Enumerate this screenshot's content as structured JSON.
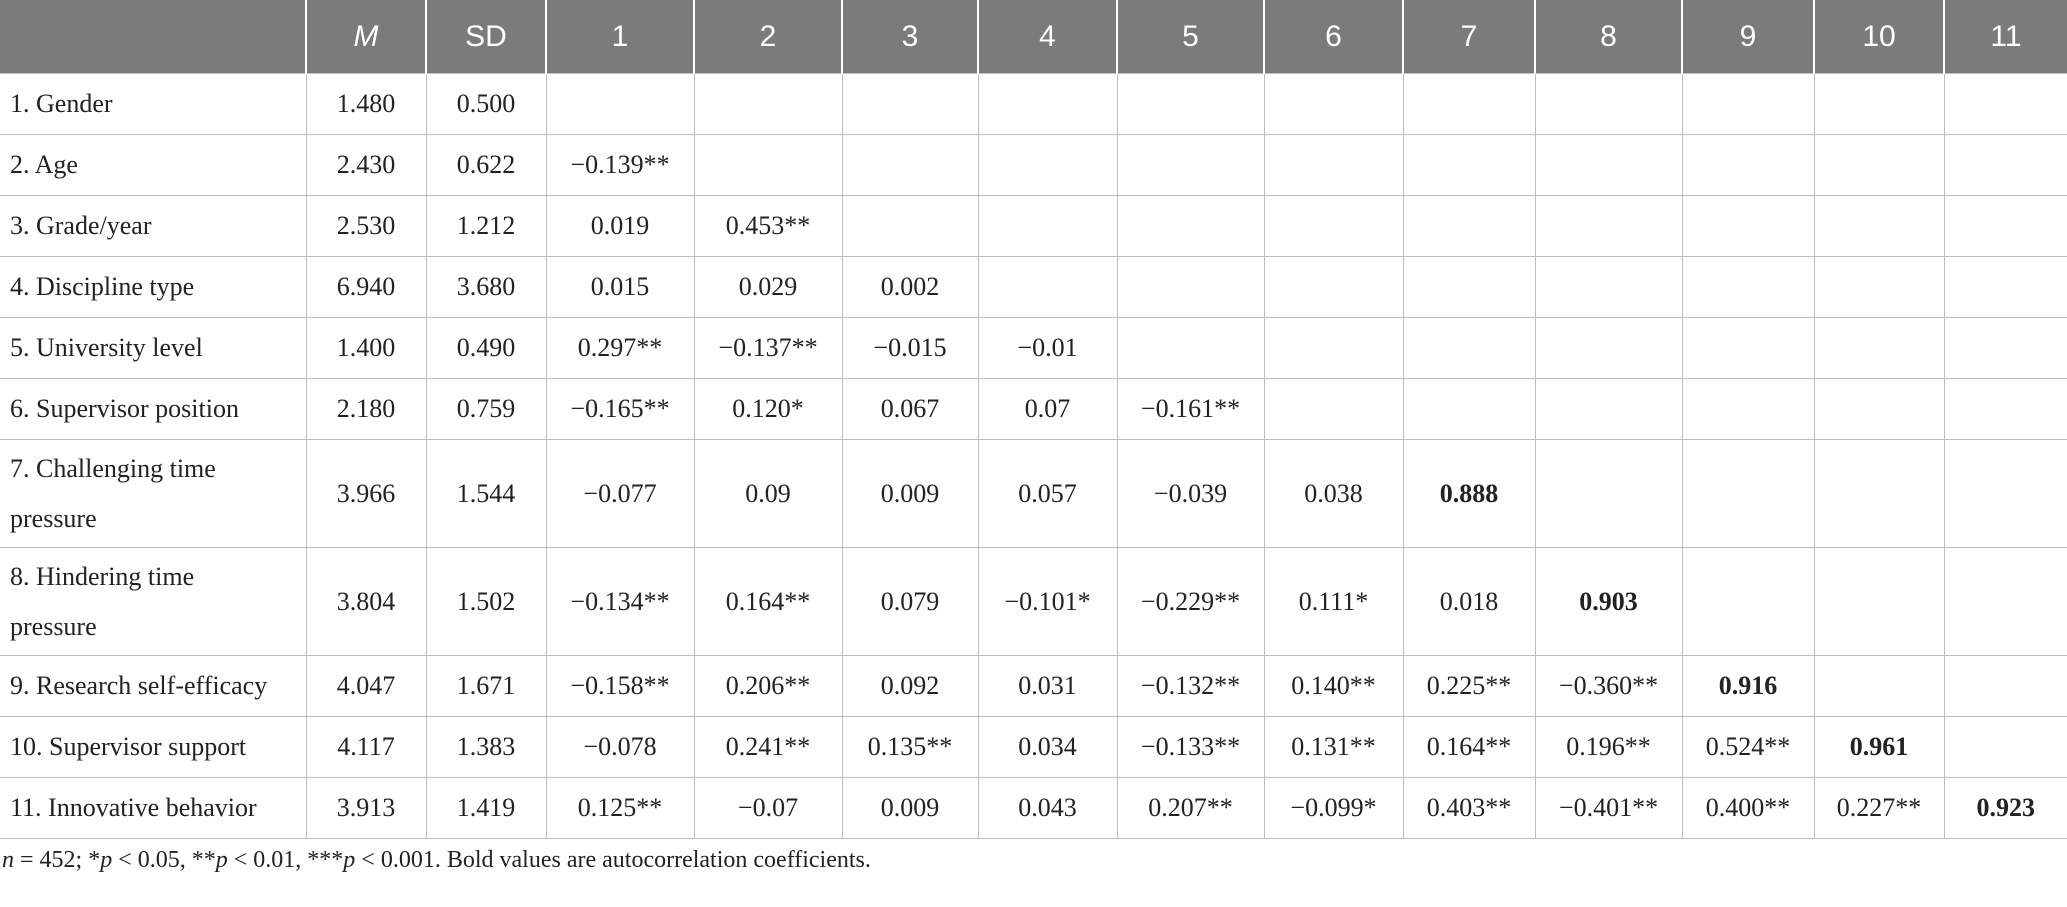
{
  "headers": [
    "",
    "M",
    "SD",
    "1",
    "2",
    "3",
    "4",
    "5",
    "6",
    "7",
    "8",
    "9",
    "10",
    "11"
  ],
  "rows": [
    {
      "label": "1. Gender",
      "m": "1.480",
      "sd": "0.500",
      "cells": [
        "",
        "",
        "",
        "",
        "",
        "",
        "",
        "",
        "",
        "",
        ""
      ]
    },
    {
      "label": "2. Age",
      "m": "2.430",
      "sd": "0.622",
      "cells": [
        "−0.139**",
        "",
        "",
        "",
        "",
        "",
        "",
        "",
        "",
        "",
        ""
      ]
    },
    {
      "label": "3. Grade/year",
      "m": "2.530",
      "sd": "1.212",
      "cells": [
        "0.019",
        "0.453**",
        "",
        "",
        "",
        "",
        "",
        "",
        "",
        "",
        ""
      ]
    },
    {
      "label": "4. Discipline type",
      "m": "6.940",
      "sd": "3.680",
      "cells": [
        "0.015",
        "0.029",
        "0.002",
        "",
        "",
        "",
        "",
        "",
        "",
        "",
        ""
      ]
    },
    {
      "label": "5. University level",
      "m": "1.400",
      "sd": "0.490",
      "cells": [
        "0.297**",
        "−0.137**",
        "−0.015",
        "−0.01",
        "",
        "",
        "",
        "",
        "",
        "",
        ""
      ]
    },
    {
      "label": "6. Supervisor position",
      "m": "2.180",
      "sd": "0.759",
      "cells": [
        "−0.165**",
        "0.120*",
        "0.067",
        "0.07",
        "−0.161**",
        "",
        "",
        "",
        "",
        "",
        ""
      ]
    },
    {
      "label": "7. Challenging time pressure",
      "m": "3.966",
      "sd": "1.544",
      "cells": [
        "−0.077",
        "0.09",
        "0.009",
        "0.057",
        "−0.039",
        "0.038",
        "0.888",
        "",
        "",
        "",
        ""
      ]
    },
    {
      "label": "8. Hindering time pressure",
      "m": "3.804",
      "sd": "1.502",
      "cells": [
        "−0.134**",
        "0.164**",
        "0.079",
        "−0.101*",
        "−0.229**",
        "0.111*",
        "0.018",
        "0.903",
        "",
        "",
        ""
      ]
    },
    {
      "label": "9. Research self-efficacy",
      "m": "4.047",
      "sd": "1.671",
      "cells": [
        "−0.158**",
        "0.206**",
        "0.092",
        "0.031",
        "−0.132**",
        "0.140**",
        "0.225**",
        "−0.360**",
        "0.916",
        "",
        ""
      ]
    },
    {
      "label": "10. Supervisor support",
      "m": "4.117",
      "sd": "1.383",
      "cells": [
        "−0.078",
        "0.241**",
        "0.135**",
        "0.034",
        "−0.133**",
        "0.131**",
        "0.164**",
        "0.196**",
        "0.524**",
        "0.961",
        ""
      ]
    },
    {
      "label": "11. Innovative behavior",
      "m": "3.913",
      "sd": "1.419",
      "cells": [
        "0.125**",
        "−0.07",
        "0.009",
        "0.043",
        "0.207**",
        "−0.099*",
        "0.403**",
        "−0.401**",
        "0.400**",
        "0.227**",
        "0.923"
      ]
    }
  ],
  "footnote": "n = 452; *p < 0.05, **p < 0.01, ***p < 0.001. Bold values are autocorrelation coefficients."
}
